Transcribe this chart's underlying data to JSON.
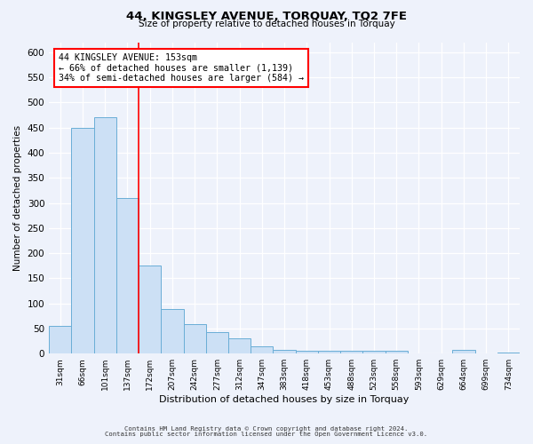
{
  "title": "44, KINGSLEY AVENUE, TORQUAY, TQ2 7FE",
  "subtitle": "Size of property relative to detached houses in Torquay",
  "xlabel": "Distribution of detached houses by size in Torquay",
  "ylabel": "Number of detached properties",
  "bar_labels": [
    "31sqm",
    "66sqm",
    "101sqm",
    "137sqm",
    "172sqm",
    "207sqm",
    "242sqm",
    "277sqm",
    "312sqm",
    "347sqm",
    "383sqm",
    "418sqm",
    "453sqm",
    "488sqm",
    "523sqm",
    "558sqm",
    "593sqm",
    "629sqm",
    "664sqm",
    "699sqm",
    "734sqm"
  ],
  "bar_values": [
    55,
    450,
    470,
    310,
    175,
    88,
    58,
    42,
    30,
    15,
    8,
    5,
    5,
    5,
    5,
    5,
    0,
    0,
    8,
    0,
    3
  ],
  "bar_color": "#cce0f5",
  "bar_edge_color": "#6aaed6",
  "vline_x": 3.5,
  "vline_color": "red",
  "annotation_line1": "44 KINGSLEY AVENUE: 153sqm",
  "annotation_line2": "← 66% of detached houses are smaller (1,139)",
  "annotation_line3": "34% of semi-detached houses are larger (584) →",
  "annotation_box_color": "white",
  "annotation_box_edge": "red",
  "ylim": [
    0,
    620
  ],
  "yticks": [
    0,
    50,
    100,
    150,
    200,
    250,
    300,
    350,
    400,
    450,
    500,
    550,
    600
  ],
  "footer_line1": "Contains HM Land Registry data © Crown copyright and database right 2024.",
  "footer_line2": "Contains public sector information licensed under the Open Government Licence v3.0.",
  "bg_color": "#eef2fb"
}
